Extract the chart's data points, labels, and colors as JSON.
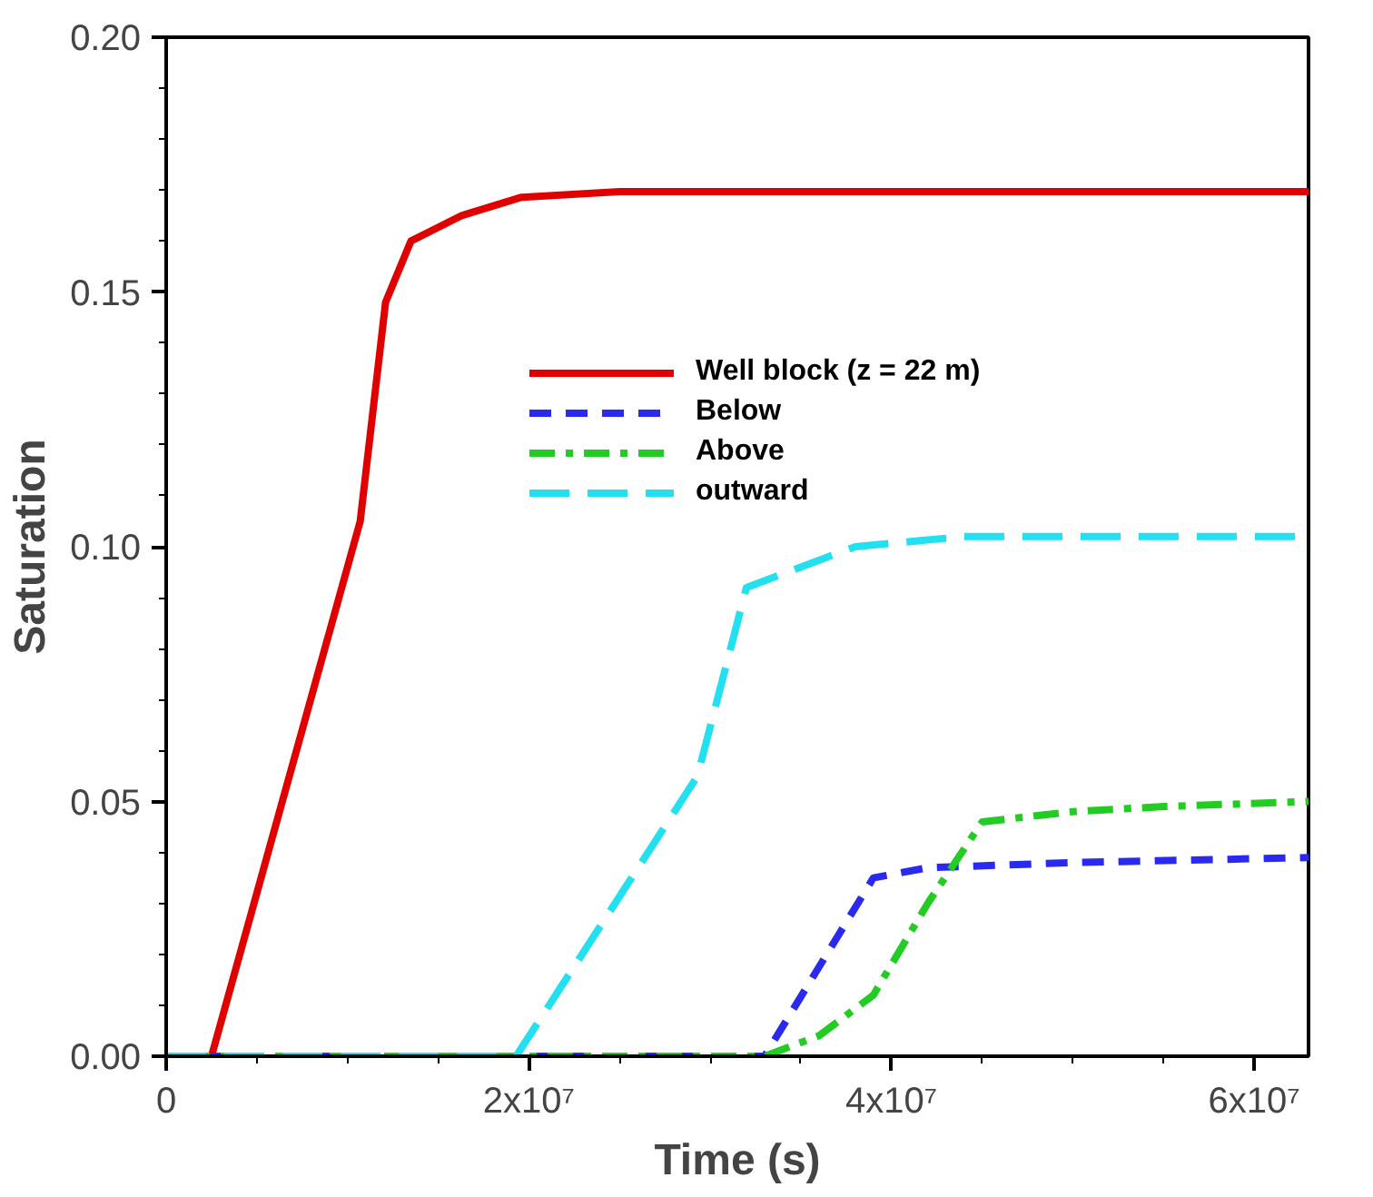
{
  "chart_data": {
    "type": "line",
    "xlabel": "Time (s)",
    "ylabel": "Saturation",
    "xlim": [
      0,
      63000000
    ],
    "ylim": [
      0,
      0.2
    ],
    "xticks": [
      0,
      {
        "value": 5000000,
        "label": null
      },
      {
        "value": 10000000,
        "label": null
      },
      {
        "value": 15000000,
        "label": null
      },
      {
        "value": 20000000,
        "label": "2x10⁷"
      },
      {
        "value": 25000000,
        "label": null
      },
      {
        "value": 30000000,
        "label": null
      },
      {
        "value": 35000000,
        "label": null
      },
      {
        "value": 40000000,
        "label": "4x10⁷"
      },
      {
        "value": 45000000,
        "label": null
      },
      {
        "value": 50000000,
        "label": null
      },
      {
        "value": 55000000,
        "label": null
      },
      {
        "value": 60000000,
        "label": "6x10⁷"
      }
    ],
    "yticks": [
      {
        "value": 0,
        "label": "0.00"
      },
      {
        "value": 0.01,
        "label": null
      },
      {
        "value": 0.02,
        "label": null
      },
      {
        "value": 0.03,
        "label": null
      },
      {
        "value": 0.04,
        "label": null
      },
      {
        "value": 0.05,
        "label": "0.05"
      },
      {
        "value": 0.06,
        "label": null
      },
      {
        "value": 0.07,
        "label": null
      },
      {
        "value": 0.08,
        "label": null
      },
      {
        "value": 0.09,
        "label": null
      },
      {
        "value": 0.1,
        "label": "0.10"
      },
      {
        "value": 0.11,
        "label": null
      },
      {
        "value": 0.12,
        "label": null
      },
      {
        "value": 0.13,
        "label": null
      },
      {
        "value": 0.14,
        "label": null
      },
      {
        "value": 0.15,
        "label": "0.15"
      },
      {
        "value": 0.16,
        "label": null
      },
      {
        "value": 0.17,
        "label": null
      },
      {
        "value": 0.18,
        "label": null
      },
      {
        "value": 0.19,
        "label": null
      },
      {
        "value": 0.2,
        "label": "0.20"
      }
    ],
    "grid": false,
    "legend": "top right",
    "marker": "none",
    "series": [
      {
        "name": "Well block (z = 22 m)",
        "color": "#e00000",
        "line_style": "solid",
        "x": [
          0,
          2500000,
          10700000,
          12100000,
          13500000,
          16300000,
          19600000,
          25000000,
          63000000
        ],
        "values": [
          0,
          0,
          0.105,
          0.148,
          0.16,
          0.165,
          0.1686,
          0.1697,
          0.1697
        ]
      },
      {
        "name": "Below",
        "color": "#2a2aee",
        "line_style": "dashed",
        "x": [
          0,
          33000000,
          39000000,
          42000000,
          50000000,
          63000000
        ],
        "values": [
          0,
          0,
          0.035,
          0.037,
          0.038,
          0.039
        ]
      },
      {
        "name": "Above",
        "color": "#22cc22",
        "line_style": "dashdot",
        "x": [
          0,
          33000000,
          36000000,
          39000000,
          42000000,
          45000000,
          50000000,
          55000000,
          63000000
        ],
        "values": [
          0,
          0,
          0.004,
          0.012,
          0.03,
          0.046,
          0.048,
          0.049,
          0.05
        ]
      },
      {
        "name": "outward",
        "color": "#22e0f0",
        "line_style": "longdash",
        "x": [
          0,
          19300000,
          29300000,
          32000000,
          38000000,
          44000000,
          63000000
        ],
        "values": [
          0,
          0,
          0.055,
          0.092,
          0.1,
          0.102,
          0.102
        ]
      }
    ]
  }
}
